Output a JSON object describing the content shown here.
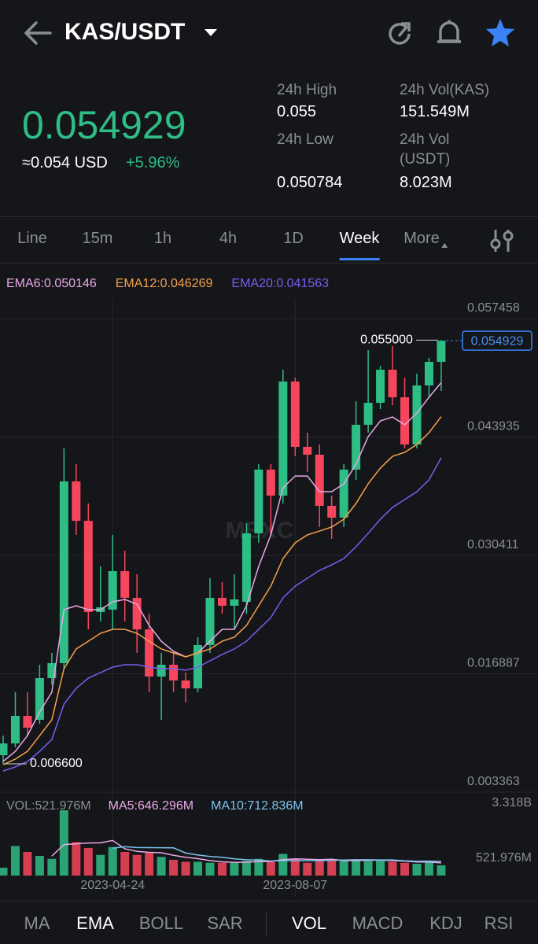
{
  "header": {
    "pair": "KAS/USDT"
  },
  "ticker": {
    "price": "0.054929",
    "usd": "≈0.054 USD",
    "change": "+5.96%"
  },
  "stats": [
    {
      "label": "24h High",
      "value": "0.055"
    },
    {
      "label": "24h Low",
      "value": "0.050784"
    },
    {
      "label": "24h Vol(KAS)",
      "value": "151.549M"
    },
    {
      "label": "24h Vol (USDT)",
      "value": "8.023M"
    }
  ],
  "tabs": [
    {
      "label": "Line"
    },
    {
      "label": "15m"
    },
    {
      "label": "1h"
    },
    {
      "label": "4h"
    },
    {
      "label": "1D"
    },
    {
      "label": "Week",
      "active": true
    },
    {
      "label": "More"
    }
  ],
  "indicator_tabs": [
    {
      "label": "MA"
    },
    {
      "label": "EMA",
      "active": true
    },
    {
      "label": "BOLL"
    },
    {
      "label": "SAR"
    },
    {
      "label": "VOL",
      "active": true
    },
    {
      "label": "MACD"
    },
    {
      "label": "KDJ"
    },
    {
      "label": "RSI"
    }
  ],
  "chart_data": [
    {
      "type": "candlestick",
      "categories": [
        null,
        null,
        null,
        null,
        null,
        null,
        null,
        null,
        null,
        "2023-04-24",
        null,
        null,
        null,
        null,
        null,
        null,
        null,
        null,
        null,
        null,
        null,
        null,
        null,
        null,
        "2023-08-07",
        null,
        null,
        null,
        null,
        null,
        null,
        null,
        null,
        null,
        null,
        null,
        null
      ],
      "open": [
        0.00759,
        0.00893,
        0.01208,
        0.01163,
        0.01639,
        0.0181,
        0.03886,
        0.03436,
        0.02394,
        0.02421,
        0.02861,
        0.02556,
        0.02196,
        0.01657,
        0.01792,
        0.01612,
        0.01522,
        0.02017,
        0.02556,
        0.02466,
        0.02511,
        0.03293,
        0.04021,
        0.03724,
        0.05027,
        0.04281,
        0.04191,
        0.03607,
        0.03472,
        0.04021,
        0.04533,
        0.04784,
        0.05162,
        0.04847,
        0.04308,
        0.04982,
        0.05252
      ],
      "high": [
        0.00983,
        0.01478,
        0.01478,
        0.01792,
        0.01927,
        0.04263,
        0.04083,
        0.03634,
        0.02915,
        0.03275,
        0.03095,
        0.02825,
        0.02376,
        0.01927,
        0.01927,
        0.01702,
        0.02107,
        0.0278,
        0.02736,
        0.02825,
        0.0341,
        0.04083,
        0.04083,
        0.05162,
        0.05072,
        0.04443,
        0.04308,
        0.03724,
        0.04083,
        0.04802,
        0.05386,
        0.05207,
        0.05431,
        0.05072,
        0.05117,
        0.05297,
        0.055
      ],
      "low": [
        0.0066,
        0.00848,
        0.00983,
        0.01118,
        0.01567,
        0.01747,
        0.03275,
        0.02196,
        0.02286,
        0.02196,
        0.02286,
        0.01927,
        0.01478,
        0.01163,
        0.01478,
        0.01361,
        0.01478,
        0.01927,
        0.02376,
        0.02196,
        0.02376,
        0.03185,
        0.03275,
        0.03634,
        0.04173,
        0.03994,
        0.03365,
        0.0323,
        0.03365,
        0.03904,
        0.04443,
        0.04712,
        0.04757,
        0.04263,
        0.04263,
        0.04847,
        0.04919
      ],
      "close": [
        0.00893,
        0.01208,
        0.01073,
        0.01639,
        0.0181,
        0.03886,
        0.03436,
        0.02394,
        0.02448,
        0.02861,
        0.02556,
        0.02196,
        0.01657,
        0.01792,
        0.01612,
        0.01522,
        0.02017,
        0.02556,
        0.02466,
        0.02538,
        0.03293,
        0.04021,
        0.03724,
        0.05027,
        0.04281,
        0.04191,
        0.03607,
        0.03472,
        0.04021,
        0.04533,
        0.04784,
        0.05162,
        0.04847,
        0.04308,
        0.04982,
        0.05252,
        0.054929
      ],
      "up_color": "#2ebd85",
      "down_color": "#f6465d",
      "lines": [
        {
          "name": "EMA6:0.050146",
          "color": "#e9a8e6",
          "values": [
            0.00687,
            0.00803,
            0.00983,
            0.01253,
            0.01478,
            0.02421,
            0.02466,
            0.02421,
            0.02421,
            0.02511,
            0.02538,
            0.02484,
            0.02241,
            0.02061,
            0.01945,
            0.01882,
            0.01927,
            0.02061,
            0.02196,
            0.02196,
            0.02466,
            0.02915,
            0.03275,
            0.03814,
            0.03948,
            0.03948,
            0.03769,
            0.03769,
            0.03859,
            0.04083,
            0.04398,
            0.04577,
            0.04622,
            0.04533,
            0.04667,
            0.04847,
            0.050146
          ]
        },
        {
          "name": "EMA12:0.046269",
          "color": "#f5a14a",
          "values": [
            0.00651,
            0.00714,
            0.00803,
            0.00983,
            0.01163,
            0.01747,
            0.01972,
            0.02061,
            0.02151,
            0.02196,
            0.02196,
            0.02151,
            0.02061,
            0.01972,
            0.01927,
            0.01882,
            0.01927,
            0.01972,
            0.02061,
            0.02107,
            0.02241,
            0.02466,
            0.0269,
            0.03005,
            0.03185,
            0.03275,
            0.03319,
            0.03365,
            0.03454,
            0.03634,
            0.03859,
            0.04038,
            0.04173,
            0.04218,
            0.04308,
            0.04443,
            0.046269
          ]
        },
        {
          "name": "EMA20:0.041563",
          "color": "#7b5cf0",
          "values": [
            0.00579,
            0.00624,
            0.00687,
            0.00803,
            0.00938,
            0.01342,
            0.01522,
            0.01639,
            0.01702,
            0.01765,
            0.01792,
            0.01792,
            0.01765,
            0.01747,
            0.01747,
            0.01729,
            0.01765,
            0.01837,
            0.01909,
            0.01972,
            0.02061,
            0.02196,
            0.02331,
            0.02556,
            0.0269,
            0.0278,
            0.0287,
            0.02933,
            0.03005,
            0.0314,
            0.03293,
            0.03454,
            0.03589,
            0.03679,
            0.03769,
            0.03904,
            0.041563
          ]
        }
      ],
      "ylim": [
        0.003363,
        0.057458
      ],
      "yticks": [
        0.057458,
        0.043935,
        0.030411,
        0.016887,
        0.003363
      ],
      "grid": true,
      "annotations": [
        {
          "value": 0.055,
          "label": "0.055000"
        },
        {
          "value": 0.0066,
          "label": "0.006600"
        }
      ],
      "last_price": 0.054929,
      "watermark": "MEXC"
    },
    {
      "type": "bar",
      "series": [
        {
          "name": "VOL:521.976M",
          "color": "#8a8d93",
          "values": [
            400000000,
            1500000000,
            1200000000,
            1000000000,
            850000000,
            3318000000,
            1700000000,
            1400000000,
            1050000000,
            1450000000,
            1200000000,
            1050000000,
            1150000000,
            950000000,
            800000000,
            700000000,
            700000000,
            650000000,
            650000000,
            650000000,
            750000000,
            850000000,
            700000000,
            1100000000,
            850000000,
            650000000,
            750000000,
            800000000,
            780000000,
            820000000,
            750000000,
            750000000,
            700000000,
            650000000,
            600000000,
            759000000,
            521976000
          ]
        }
      ],
      "lines": [
        {
          "name": "MA5:646.296M",
          "color": "#e9a8e6",
          "values": [
            null,
            null,
            null,
            null,
            990000000,
            1574000000,
            1614000000,
            1654000000,
            1664000000,
            1784000000,
            1360000000,
            1230000000,
            1180000000,
            1160000000,
            1030000000,
            930000000,
            860000000,
            760000000,
            700000000,
            670000000,
            680000000,
            710000000,
            720000000,
            810000000,
            850000000,
            830000000,
            810000000,
            830000000,
            766000000,
            760000000,
            780000000,
            780000000,
            760000000,
            734000000,
            690000000,
            692000000,
            646296000
          ]
        },
        {
          "name": "MA10:712.836M",
          "color": "#7ec3ee",
          "values": [
            null,
            null,
            null,
            null,
            null,
            null,
            null,
            null,
            null,
            1387000000,
            1467000000,
            1422000000,
            1417000000,
            1412000000,
            1407000000,
            1145000000,
            1045000000,
            970000000,
            930000000,
            850000000,
            805000000,
            785000000,
            740000000,
            755000000,
            760000000,
            755000000,
            760000000,
            775000000,
            788000000,
            805000000,
            805000000,
            795000000,
            795000000,
            750000000,
            725000000,
            736000000,
            712836000
          ]
        }
      ],
      "ylim": [
        0,
        3318000000
      ],
      "yticks": [
        {
          "value": 3318000000,
          "label": "3.318B"
        },
        {
          "value": 521976000,
          "label": "521.976M"
        }
      ]
    }
  ]
}
